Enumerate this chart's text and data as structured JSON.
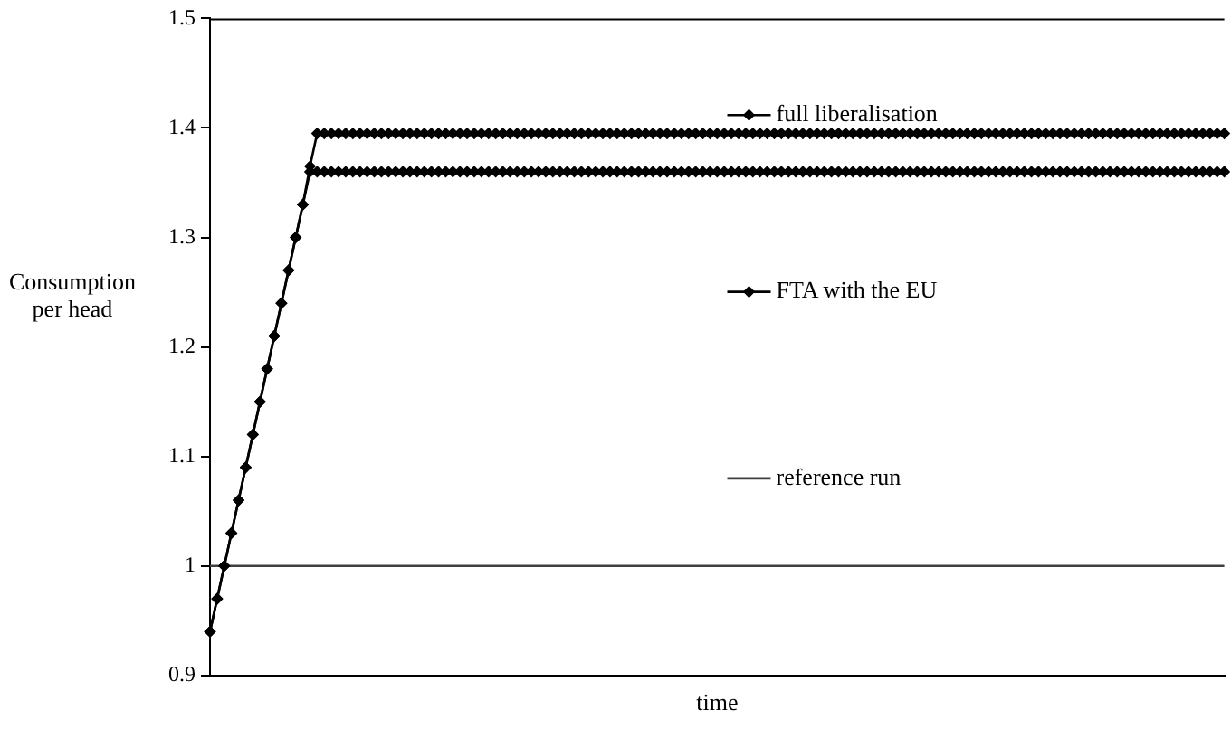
{
  "chart_data": {
    "type": "line",
    "xlabel": "time",
    "ylabel": "Consumption per head",
    "categories": [
      null,
      null,
      null,
      null,
      null,
      null,
      null,
      null,
      null,
      null,
      null,
      null,
      null,
      null,
      null,
      null,
      null,
      null,
      null,
      null,
      null,
      null,
      null,
      null,
      null,
      null,
      null,
      null,
      null,
      null,
      null,
      null,
      null,
      null,
      null,
      null,
      null,
      null,
      null,
      null,
      null,
      null,
      null,
      null,
      null,
      null,
      null,
      null,
      null,
      null,
      null,
      null,
      null,
      null,
      null,
      null,
      null,
      null,
      null,
      null,
      null,
      null,
      null,
      null,
      null,
      null,
      null,
      null,
      null,
      null,
      null,
      null,
      null,
      null,
      null,
      null,
      null,
      null,
      null,
      null,
      null,
      null,
      null,
      null,
      null,
      null,
      null,
      null,
      null,
      null,
      null,
      null,
      null,
      null,
      null,
      null,
      null,
      null,
      null,
      null,
      null,
      null,
      null,
      null,
      null,
      null,
      null,
      null,
      null,
      null,
      null,
      null,
      null,
      null,
      null,
      null,
      null,
      null,
      null,
      null,
      null,
      null,
      null,
      null,
      null,
      null,
      null,
      null,
      null,
      null,
      null,
      null,
      null,
      null,
      null,
      null,
      null,
      null,
      null,
      null,
      null,
      null,
      null
    ],
    "series": [
      {
        "name": "full liberalisation",
        "color": "#000000",
        "marker": "diamond",
        "values": [
          0.94,
          0.97,
          1,
          1.03,
          1.06,
          1.09,
          1.12,
          1.15,
          1.18,
          1.21,
          1.24,
          1.27,
          1.3,
          1.33,
          1.365,
          1.395,
          1.395,
          1.395,
          1.395,
          1.395,
          1.395,
          1.395,
          1.395,
          1.395,
          1.395,
          1.395,
          1.395,
          1.395,
          1.395,
          1.395,
          1.395,
          1.395,
          1.395,
          1.395,
          1.395,
          1.395,
          1.395,
          1.395,
          1.395,
          1.395,
          1.395,
          1.395,
          1.395,
          1.395,
          1.395,
          1.395,
          1.395,
          1.395,
          1.395,
          1.395,
          1.395,
          1.395,
          1.395,
          1.395,
          1.395,
          1.395,
          1.395,
          1.395,
          1.395,
          1.395,
          1.395,
          1.395,
          1.395,
          1.395,
          1.395,
          1.395,
          1.395,
          1.395,
          1.395,
          1.395,
          1.395,
          1.395,
          1.395,
          1.395,
          1.395,
          1.395,
          1.395,
          1.395,
          1.395,
          1.395,
          1.395,
          1.395,
          1.395,
          1.395,
          1.395,
          1.395,
          1.395,
          1.395,
          1.395,
          1.395,
          1.395,
          1.395,
          1.395,
          1.395,
          1.395,
          1.395,
          1.395,
          1.395,
          1.395,
          1.395,
          1.395,
          1.395,
          1.395,
          1.395,
          1.395,
          1.395,
          1.395,
          1.395,
          1.395,
          1.395,
          1.395,
          1.395,
          1.395,
          1.395,
          1.395,
          1.395,
          1.395,
          1.395,
          1.395,
          1.395,
          1.395,
          1.395,
          1.395,
          1.395,
          1.395,
          1.395,
          1.395,
          1.395,
          1.395,
          1.395,
          1.395,
          1.395,
          1.395,
          1.395,
          1.395,
          1.395,
          1.395,
          1.395,
          1.395,
          1.395,
          1.395,
          1.395,
          1.395
        ]
      },
      {
        "name": "FTA with the EU",
        "color": "#000000",
        "marker": "diamond",
        "values": [
          0.94,
          0.97,
          1,
          1.03,
          1.06,
          1.09,
          1.12,
          1.15,
          1.18,
          1.21,
          1.24,
          1.27,
          1.3,
          1.33,
          1.36,
          1.36,
          1.36,
          1.36,
          1.36,
          1.36,
          1.36,
          1.36,
          1.36,
          1.36,
          1.36,
          1.36,
          1.36,
          1.36,
          1.36,
          1.36,
          1.36,
          1.36,
          1.36,
          1.36,
          1.36,
          1.36,
          1.36,
          1.36,
          1.36,
          1.36,
          1.36,
          1.36,
          1.36,
          1.36,
          1.36,
          1.36,
          1.36,
          1.36,
          1.36,
          1.36,
          1.36,
          1.36,
          1.36,
          1.36,
          1.36,
          1.36,
          1.36,
          1.36,
          1.36,
          1.36,
          1.36,
          1.36,
          1.36,
          1.36,
          1.36,
          1.36,
          1.36,
          1.36,
          1.36,
          1.36,
          1.36,
          1.36,
          1.36,
          1.36,
          1.36,
          1.36,
          1.36,
          1.36,
          1.36,
          1.36,
          1.36,
          1.36,
          1.36,
          1.36,
          1.36,
          1.36,
          1.36,
          1.36,
          1.36,
          1.36,
          1.36,
          1.36,
          1.36,
          1.36,
          1.36,
          1.36,
          1.36,
          1.36,
          1.36,
          1.36,
          1.36,
          1.36,
          1.36,
          1.36,
          1.36,
          1.36,
          1.36,
          1.36,
          1.36,
          1.36,
          1.36,
          1.36,
          1.36,
          1.36,
          1.36,
          1.36,
          1.36,
          1.36,
          1.36,
          1.36,
          1.36,
          1.36,
          1.36,
          1.36,
          1.36,
          1.36,
          1.36,
          1.36,
          1.36,
          1.36,
          1.36,
          1.36,
          1.36,
          1.36,
          1.36,
          1.36,
          1.36,
          1.36,
          1.36,
          1.36,
          1.36,
          1.36,
          1.36
        ]
      },
      {
        "name": "reference run",
        "color": "#404040",
        "marker": "none",
        "values": [
          1,
          1,
          1,
          1,
          1,
          1,
          1,
          1,
          1,
          1,
          1,
          1,
          1,
          1,
          1,
          1,
          1,
          1,
          1,
          1,
          1,
          1,
          1,
          1,
          1,
          1,
          1,
          1,
          1,
          1,
          1,
          1,
          1,
          1,
          1,
          1,
          1,
          1,
          1,
          1,
          1,
          1,
          1,
          1,
          1,
          1,
          1,
          1,
          1,
          1,
          1,
          1,
          1,
          1,
          1,
          1,
          1,
          1,
          1,
          1,
          1,
          1,
          1,
          1,
          1,
          1,
          1,
          1,
          1,
          1,
          1,
          1,
          1,
          1,
          1,
          1,
          1,
          1,
          1,
          1,
          1,
          1,
          1,
          1,
          1,
          1,
          1,
          1,
          1,
          1,
          1,
          1,
          1,
          1,
          1,
          1,
          1,
          1,
          1,
          1,
          1,
          1,
          1,
          1,
          1,
          1,
          1,
          1,
          1,
          1,
          1,
          1,
          1,
          1,
          1,
          1,
          1,
          1,
          1,
          1,
          1,
          1,
          1,
          1,
          1,
          1,
          1,
          1,
          1,
          1,
          1,
          1,
          1,
          1,
          1,
          1,
          1,
          1,
          1,
          1,
          1,
          1,
          1
        ]
      }
    ],
    "ylim": [
      0.9,
      1.5
    ],
    "yticks": [
      0.9,
      1,
      1.1,
      1.2,
      1.3,
      1.4,
      1.5
    ],
    "tick_labels": "y",
    "legend": "center",
    "line_style": "solid"
  }
}
